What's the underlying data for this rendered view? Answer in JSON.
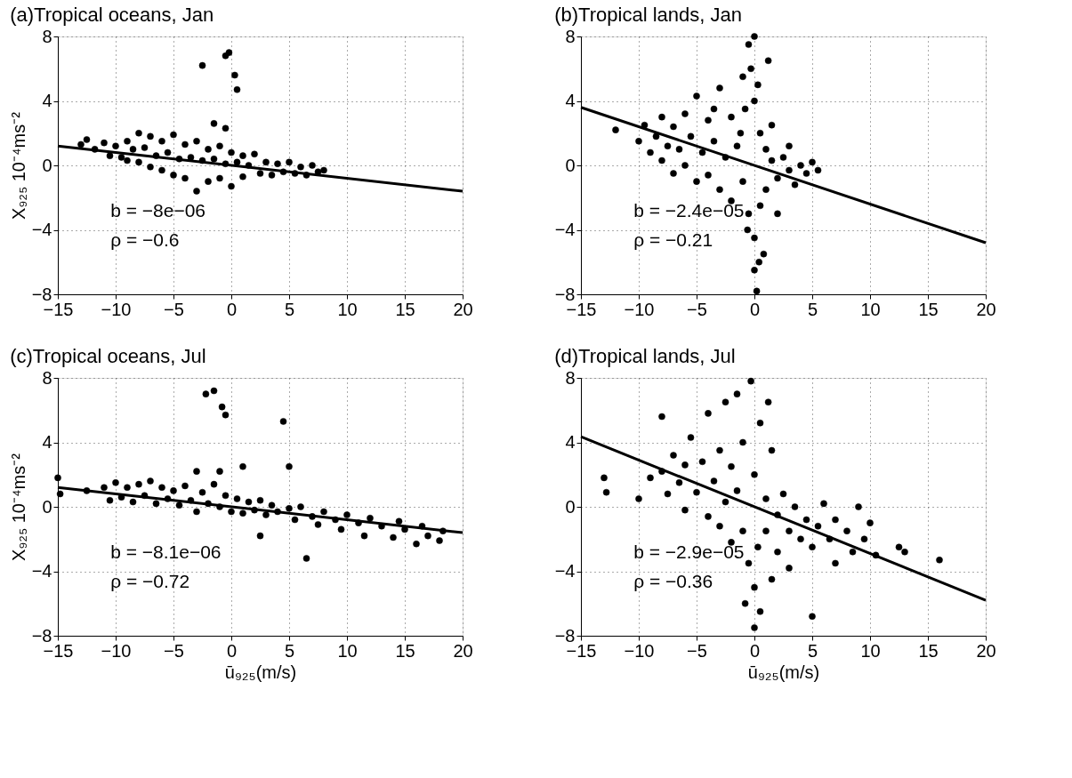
{
  "chart_data": [
    {
      "type": "scatter",
      "title": "(a)Tropical oceans, Jan",
      "ylabel": "X₉₂₅   10⁻⁴ms⁻²",
      "xlim": [
        -15,
        20
      ],
      "xticks": [
        -15,
        -10,
        -5,
        0,
        5,
        10,
        15,
        20
      ],
      "ylim": [
        -8,
        8
      ],
      "yticks": [
        -8,
        -4,
        0,
        4,
        8
      ],
      "grid": true,
      "annotations": [
        "b = −8e−06",
        "ρ = −0.6"
      ],
      "series": [
        {
          "type": "scatter",
          "marker": "circle",
          "color": "#000000",
          "x": [
            -13,
            -12.5,
            -11.8,
            -11,
            -10.5,
            -10,
            -9.5,
            -9,
            -9,
            -8.5,
            -8,
            -8,
            -7.5,
            -7,
            -7,
            -6.5,
            -6,
            -6,
            -5.5,
            -5,
            -5,
            -4.5,
            -4,
            -4,
            -3.5,
            -3,
            -3,
            -2.5,
            -2,
            -2,
            -1.5,
            -1,
            -1,
            -0.5,
            0,
            0,
            0.5,
            1,
            1,
            1.5,
            2,
            2.5,
            3,
            3.5,
            4,
            4.5,
            5,
            5.5,
            6,
            6.5,
            7,
            7.5,
            8,
            -2.5,
            -0.5,
            -0.2,
            0.3,
            0.5,
            -1.5,
            -0.5
          ],
          "values": [
            1.3,
            1.6,
            1.0,
            1.4,
            0.6,
            1.2,
            0.5,
            1.5,
            0.3,
            1.0,
            2.0,
            0.2,
            1.1,
            1.8,
            -0.1,
            0.6,
            1.5,
            -0.3,
            0.8,
            1.9,
            -0.6,
            0.4,
            1.3,
            -0.8,
            0.5,
            1.5,
            -1.6,
            0.3,
            1.0,
            -1.0,
            0.4,
            1.2,
            -0.8,
            0.1,
            0.8,
            -1.3,
            0.2,
            0.6,
            -0.7,
            0,
            0.7,
            -0.5,
            0.2,
            -0.6,
            0.1,
            -0.4,
            0.2,
            -0.5,
            -0.1,
            -0.6,
            0,
            -0.4,
            -0.3,
            6.2,
            6.8,
            7.0,
            5.6,
            4.7,
            2.6,
            2.3
          ]
        },
        {
          "type": "line",
          "color": "#000000",
          "x": [
            -15,
            20
          ],
          "values": [
            1.2,
            -1.6
          ]
        }
      ]
    },
    {
      "type": "scatter",
      "title": "(b)Tropical lands, Jan",
      "xlim": [
        -15,
        20
      ],
      "xticks": [
        -15,
        -10,
        -5,
        0,
        5,
        10,
        15,
        20
      ],
      "ylim": [
        -8,
        8
      ],
      "yticks": [
        -8,
        -4,
        0,
        4,
        8
      ],
      "grid": true,
      "annotations": [
        "b = −2.4e−05",
        "ρ = −0.21"
      ],
      "series": [
        {
          "type": "scatter",
          "marker": "circle",
          "color": "#000000",
          "x": [
            -12,
            -10,
            -9.5,
            -9,
            -8.5,
            -8,
            -8,
            -7.5,
            -7,
            -7,
            -6.5,
            -6,
            -6,
            -5.5,
            -5,
            -5,
            -4.5,
            -4,
            -4,
            -3.5,
            -3,
            -3,
            -2.5,
            -2,
            -2,
            -1.5,
            -1,
            -1,
            -0.8,
            -0.5,
            -0.5,
            -0.3,
            0,
            0,
            0,
            0,
            0.2,
            0.3,
            0.5,
            0.5,
            0.8,
            1,
            1,
            1.5,
            1.5,
            2,
            2,
            2.5,
            3,
            3,
            3.5,
            4,
            4.5,
            5,
            5.5,
            -0.6,
            0.4,
            -1.2,
            -3.5,
            1.2
          ],
          "values": [
            2.2,
            1.5,
            2.5,
            0.8,
            1.8,
            3.0,
            0.3,
            1.2,
            2.4,
            -0.5,
            1.0,
            3.2,
            0,
            1.8,
            4.3,
            -1.0,
            0.8,
            2.8,
            -0.6,
            1.5,
            4.8,
            -1.5,
            0.5,
            3.0,
            -2.2,
            1.2,
            5.5,
            -1.0,
            3.5,
            7.5,
            -3.0,
            6.0,
            8.0,
            4.0,
            -4.5,
            -6.5,
            -7.8,
            5.0,
            2.0,
            -2.5,
            -5.5,
            1.0,
            -1.5,
            0.3,
            2.5,
            -0.8,
            -3.0,
            0.5,
            -0.3,
            1.2,
            -1.2,
            0,
            -0.5,
            0.2,
            -0.3,
            -4.0,
            -6.0,
            2.0,
            3.5,
            6.5
          ]
        },
        {
          "type": "line",
          "color": "#000000",
          "x": [
            -15,
            20
          ],
          "values": [
            3.6,
            -4.8
          ]
        }
      ]
    },
    {
      "type": "scatter",
      "title": "(c)Tropical oceans, Jul",
      "ylabel": "X₉₂₅   10⁻⁴ms⁻²",
      "xlabel": "ū₉₂₅(m/s)",
      "xlim": [
        -15,
        20
      ],
      "xticks": [
        -15,
        -10,
        -5,
        0,
        5,
        10,
        15,
        20
      ],
      "ylim": [
        -8,
        8
      ],
      "yticks": [
        -8,
        -4,
        0,
        4,
        8
      ],
      "grid": true,
      "annotations": [
        "b = −8.1e−06",
        "ρ = −0.72"
      ],
      "series": [
        {
          "type": "scatter",
          "marker": "circle",
          "color": "#000000",
          "x": [
            -15,
            -14.8,
            -12.5,
            -11,
            -10.5,
            -10,
            -9.5,
            -9,
            -8.5,
            -8,
            -7.5,
            -7,
            -6.5,
            -6,
            -5.5,
            -5,
            -4.5,
            -4,
            -3.5,
            -3,
            -3,
            -2.5,
            -2,
            -1.5,
            -1,
            -0.5,
            0,
            0.5,
            1,
            1.5,
            2,
            2.5,
            3,
            3.5,
            4,
            5,
            5.5,
            6,
            7,
            7.5,
            8,
            9,
            9.5,
            10,
            11,
            11.5,
            12,
            13,
            14,
            14.5,
            15,
            16,
            16.5,
            17,
            18,
            18.3,
            -2.2,
            -1.5,
            -0.8,
            -0.5,
            4.5,
            5,
            -1,
            1,
            6.5,
            2.5
          ],
          "values": [
            1.8,
            0.8,
            1.0,
            1.2,
            0.4,
            1.5,
            0.6,
            1.2,
            0.3,
            1.4,
            0.7,
            1.6,
            0.2,
            1.2,
            0.5,
            1.0,
            0.1,
            1.3,
            0.4,
            2.2,
            -0.3,
            0.9,
            0.2,
            1.4,
            0.0,
            0.7,
            -0.3,
            0.5,
            -0.4,
            0.3,
            -0.2,
            0.4,
            -0.5,
            0.1,
            -0.3,
            -0.1,
            -0.8,
            0,
            -0.6,
            -1.1,
            -0.3,
            -0.8,
            -1.4,
            -0.5,
            -1.0,
            -1.8,
            -0.7,
            -1.2,
            -1.9,
            -0.9,
            -1.4,
            -2.3,
            -1.2,
            -1.8,
            -2.1,
            -1.5,
            7.0,
            7.2,
            6.2,
            5.7,
            5.3,
            2.5,
            2.2,
            2.5,
            -3.2,
            -1.8
          ]
        },
        {
          "type": "line",
          "color": "#000000",
          "x": [
            -15,
            20
          ],
          "values": [
            1.2,
            -1.6
          ]
        }
      ]
    },
    {
      "type": "scatter",
      "title": "(d)Tropical lands, Jul",
      "xlabel": "ū₉₂₅(m/s)",
      "xlim": [
        -15,
        20
      ],
      "xticks": [
        -15,
        -10,
        -5,
        0,
        5,
        10,
        15,
        20
      ],
      "ylim": [
        -8,
        8
      ],
      "yticks": [
        -8,
        -4,
        0,
        4,
        8
      ],
      "grid": true,
      "annotations": [
        "b = −2.9e−05",
        "ρ = −0.36"
      ],
      "series": [
        {
          "type": "scatter",
          "marker": "circle",
          "color": "#000000",
          "x": [
            -13,
            -12.8,
            -10,
            -9,
            -8,
            -8,
            -7.5,
            -7,
            -6.5,
            -6,
            -6,
            -5.5,
            -5,
            -4.5,
            -4,
            -4,
            -3.5,
            -3,
            -3,
            -2.5,
            -2.5,
            -2,
            -2,
            -1.5,
            -1.5,
            -1,
            -1,
            -0.5,
            -0.3,
            0,
            0,
            0,
            0.3,
            0.5,
            0.5,
            1,
            1,
            1.5,
            1.5,
            2,
            2,
            2.5,
            3,
            3,
            3.5,
            4,
            4.5,
            5,
            5,
            5.5,
            6,
            6.5,
            7,
            7,
            8,
            8.5,
            9,
            9.5,
            10,
            10.5,
            12.5,
            13,
            16,
            1.2,
            -0.8
          ],
          "values": [
            1.8,
            0.9,
            0.5,
            1.8,
            5.6,
            2.2,
            0.8,
            3.2,
            1.5,
            -0.2,
            2.6,
            4.3,
            0.9,
            2.8,
            -0.6,
            5.8,
            1.6,
            3.5,
            -1.2,
            6.5,
            0.3,
            2.5,
            -2.2,
            7.0,
            1.0,
            4.0,
            -1.5,
            -3.5,
            7.8,
            2.0,
            -5.0,
            -7.5,
            -2.5,
            5.2,
            -6.5,
            0.5,
            -1.5,
            3.5,
            -4.5,
            -0.5,
            -2.8,
            0.8,
            -1.5,
            -3.8,
            0,
            -2.0,
            -0.8,
            -2.5,
            -6.8,
            -1.2,
            0.2,
            -2.0,
            -3.5,
            -0.8,
            -1.5,
            -2.8,
            0,
            -2.0,
            -1.0,
            -3.0,
            -2.5,
            -2.8,
            -3.3,
            6.5,
            -6.0
          ]
        },
        {
          "type": "line",
          "color": "#000000",
          "x": [
            -15,
            20
          ],
          "values": [
            4.35,
            -5.8
          ]
        }
      ]
    }
  ]
}
